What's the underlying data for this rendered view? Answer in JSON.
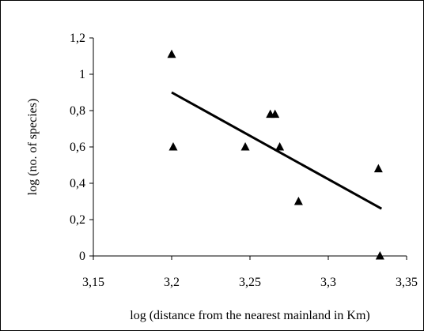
{
  "chart_data": {
    "type": "scatter",
    "xlabel": "log (distance from the nearest mainland in Km)",
    "ylabel": "log (no. of species)",
    "xlim": [
      3.15,
      3.35
    ],
    "ylim": [
      0,
      1.2
    ],
    "x_ticks": [
      "3,15",
      "3,2",
      "3,25",
      "3,3",
      "3,35"
    ],
    "y_ticks": [
      "0",
      "0,2",
      "0,4",
      "0,6",
      "0,8",
      "1",
      "1,2"
    ],
    "grid": false,
    "legend": "none",
    "marker": "triangle",
    "colors": {
      "marker": "#000000",
      "line": "#000000",
      "axis": "#000000"
    },
    "series": [
      {
        "points": [
          {
            "x": 3.2,
            "y": 1.11
          },
          {
            "x": 3.201,
            "y": 0.6
          },
          {
            "x": 3.247,
            "y": 0.6
          },
          {
            "x": 3.263,
            "y": 0.78
          },
          {
            "x": 3.266,
            "y": 0.78
          },
          {
            "x": 3.269,
            "y": 0.6
          },
          {
            "x": 3.281,
            "y": 0.3
          },
          {
            "x": 3.332,
            "y": 0.48
          },
          {
            "x": 3.333,
            "y": 0.0
          }
        ]
      }
    ],
    "trendline": {
      "x": [
        3.2,
        3.334
      ],
      "y": [
        0.9,
        0.26
      ]
    }
  }
}
